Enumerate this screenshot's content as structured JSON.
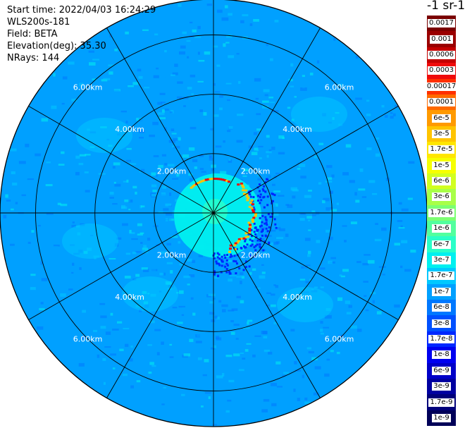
{
  "info": {
    "start_time": "Start time: 2022/04/03 16:24:29",
    "instrument": "WLS200s-181",
    "field": "Field: BETA",
    "elevation": "Elevation(deg): 35.30",
    "nrays": "NRays: 144"
  },
  "colorbar": {
    "unit": "-1 sr-1",
    "items": [
      {
        "label": "0.0017",
        "color": "#7a0000"
      },
      {
        "label": "0.001",
        "color": "#9a0000"
      },
      {
        "label": "0.0006",
        "color": "#c40000"
      },
      {
        "label": "0.0003",
        "color": "#ef0a0a"
      },
      {
        "label": "0.00017",
        "color": "#ff3000"
      },
      {
        "label": "0.0001",
        "color": "#ff6a00"
      },
      {
        "label": "6e-5",
        "color": "#ff9a00"
      },
      {
        "label": "3e-5",
        "color": "#ffc400"
      },
      {
        "label": "1.7e-5",
        "color": "#ffe600"
      },
      {
        "label": "1e-5",
        "color": "#f6ff00"
      },
      {
        "label": "6e-6",
        "color": "#d2ff20"
      },
      {
        "label": "3e-6",
        "color": "#a8ff48"
      },
      {
        "label": "1.7e-6",
        "color": "#7cff72"
      },
      {
        "label": "1e-6",
        "color": "#52ff9e"
      },
      {
        "label": "6e-7",
        "color": "#2affc8"
      },
      {
        "label": "3e-7",
        "color": "#00f0ef"
      },
      {
        "label": "1.7e-7",
        "color": "#00c8ff"
      },
      {
        "label": "1e-7",
        "color": "#00a0ff"
      },
      {
        "label": "6e-8",
        "color": "#0078ff"
      },
      {
        "label": "3e-8",
        "color": "#0050ff"
      },
      {
        "label": "1.7e-8",
        "color": "#0028ff"
      },
      {
        "label": "1e-8",
        "color": "#0000f0"
      },
      {
        "label": "6e-9",
        "color": "#0000c8"
      },
      {
        "label": "3e-9",
        "color": "#0000a0"
      },
      {
        "label": "1.7e-9",
        "color": "#00007a"
      },
      {
        "label": "1e-9",
        "color": "#000058"
      }
    ]
  },
  "chart_data": {
    "type": "heatmap",
    "projection": "polar-ppi",
    "field": "BETA",
    "elevation_deg": 35.3,
    "nrays": 144,
    "range_ring_labels": [
      "2.00km",
      "4.00km",
      "6.00km"
    ],
    "range_rings_km": [
      2,
      4,
      6
    ],
    "max_range_km": 7.2,
    "spokes_every_deg": 30,
    "background_level": "1e-7",
    "inner_level": "3e-7",
    "hotspot_level": "3e-5",
    "colors": {
      "grid": "#000000",
      "ring_label": "#ffffff"
    }
  }
}
